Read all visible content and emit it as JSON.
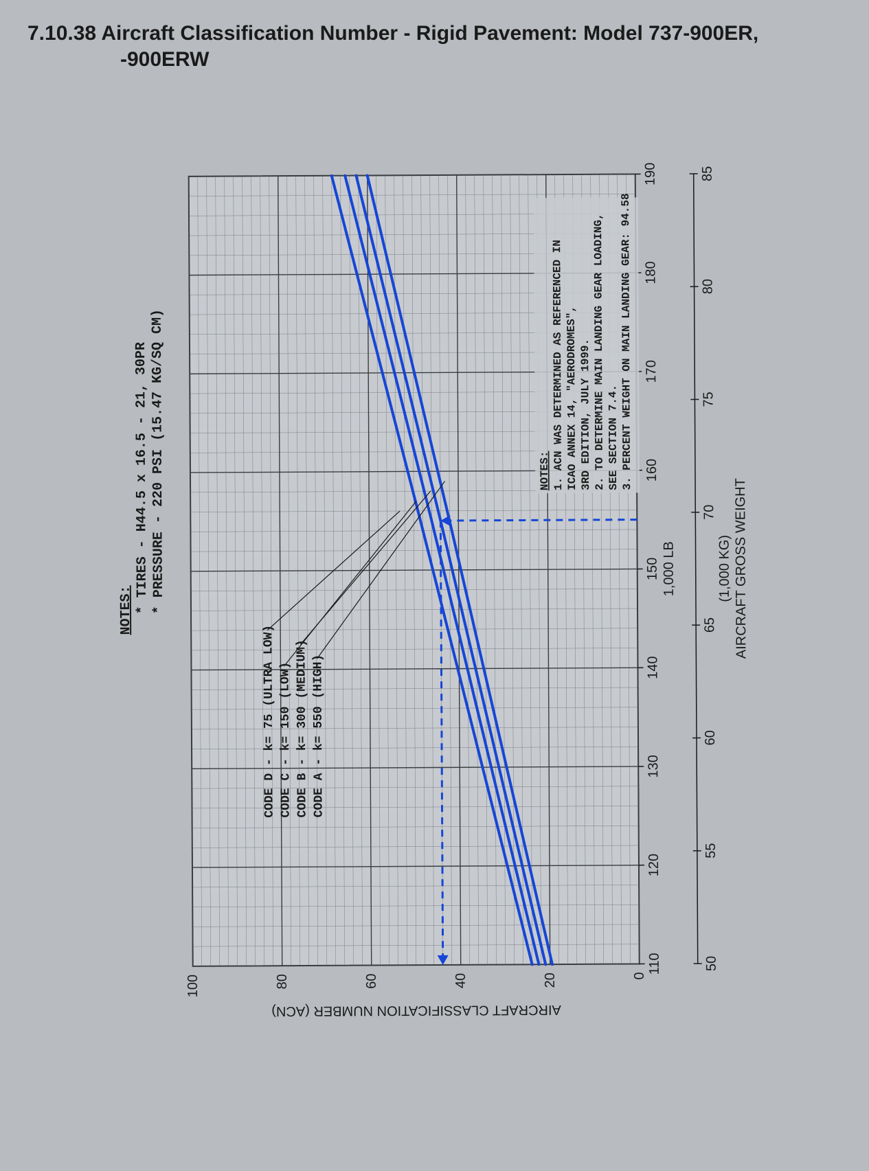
{
  "title": {
    "section": "7.10.38",
    "main": "Aircraft Classification Number - Rigid Pavement: Model 737-900ER,",
    "sub": "-900ERW"
  },
  "chart": {
    "type": "line",
    "orientation": "rotated-90",
    "plot_bg": "#c7cbcf",
    "grid_minor_color": "#7a7f84",
    "grid_major_color": "#3a3d40",
    "line_color": "#1646d6",
    "line_width": 4,
    "dash_color": "#1646d6",
    "axis_label_color": "#1a1a1a",
    "notes_header": {
      "title": "NOTES:",
      "lines": [
        "* TIRES - H44.5 x 16.5 - 21, 30PR",
        "* PRESSURE - 220 PSI (15.47 KG/SQ CM)"
      ]
    },
    "y_axis": {
      "label": "AIRCRAFT CLASSIFICATION NUMBER (ACN)",
      "min": 0,
      "max": 100,
      "ticks": [
        0,
        20,
        40,
        60,
        80,
        100
      ],
      "minor_step": 2
    },
    "x_axis_lb": {
      "unit": "1,000 LB",
      "min": 110,
      "max": 190,
      "ticks": [
        110,
        120,
        130,
        140,
        150,
        160,
        170,
        180,
        190
      ],
      "minor_step": 2
    },
    "x_axis_kg": {
      "unit": "(1,000 KG)",
      "label": "AIRCRAFT GROSS WEIGHT",
      "min": 50,
      "max": 85,
      "ticks": [
        50,
        55,
        60,
        65,
        70,
        75,
        80,
        85
      ]
    },
    "series": [
      {
        "name": "CODE D - k= 75 (ULTRA LOW)",
        "points": [
          [
            110,
            24
          ],
          [
            155,
            48.5
          ],
          [
            190,
            68
          ]
        ]
      },
      {
        "name": "CODE C - k= 150 (LOW)",
        "points": [
          [
            110,
            22.5
          ],
          [
            155,
            46
          ],
          [
            190,
            65
          ]
        ]
      },
      {
        "name": "CODE B - k= 300 (MEDIUM)",
        "points": [
          [
            110,
            21
          ],
          [
            155,
            44
          ],
          [
            190,
            62.5
          ]
        ]
      },
      {
        "name": "CODE A - k= 550 (HIGH)",
        "points": [
          [
            110,
            19.5
          ],
          [
            155,
            42
          ],
          [
            190,
            60
          ]
        ]
      }
    ],
    "example_trace": {
      "x_lb": 155,
      "y_acn": 44
    },
    "legend": {
      "title": "",
      "items": [
        "CODE D - k= 75 (ULTRA LOW)",
        "CODE C - k= 150 (LOW)",
        "CODE B - k= 300 (MEDIUM)",
        "CODE A - k= 550 (HIGH)"
      ],
      "font_size": 18
    },
    "notes_box": {
      "title": "NOTES:",
      "lines": [
        "1. ACN WAS DETERMINED AS REFERENCED IN",
        "   ICAO ANNEX 14, \"AERODROMES\",",
        "   3RD EDITION, JULY 1999.",
        "2. TO DETERMINE MAIN LANDING GEAR LOADING,",
        "   SEE SECTION 7.4.",
        "3. PERCENT WEIGHT ON MAIN LANDING GEAR: 94.58"
      ],
      "font_size": 16
    }
  }
}
